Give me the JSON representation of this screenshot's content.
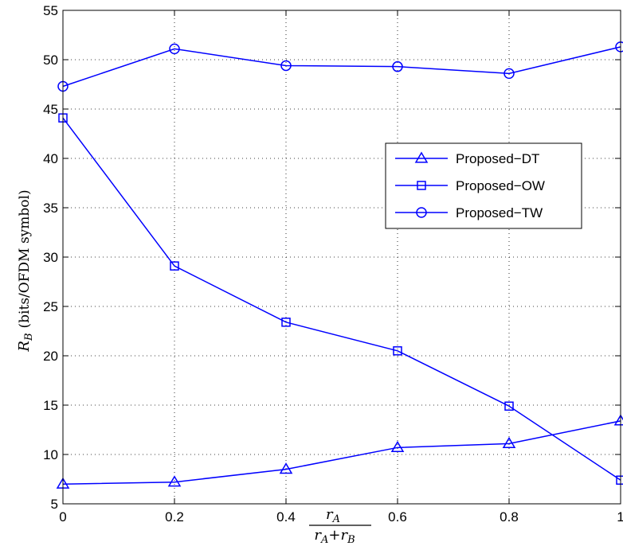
{
  "chart_data": {
    "type": "line",
    "title": "",
    "x": [
      0,
      0.2,
      0.4,
      0.6,
      0.8,
      1
    ],
    "xlim": [
      0,
      1
    ],
    "ylim": [
      5,
      55
    ],
    "xticks": [
      "0",
      "0.2",
      "0.4",
      "0.6",
      "0.8",
      "1"
    ],
    "yticks": [
      "5",
      "10",
      "15",
      "20",
      "25",
      "30",
      "35",
      "40",
      "45",
      "50",
      "55"
    ],
    "xlabel": {
      "num_main": "r",
      "num_sub": "A",
      "den_a_main": "r",
      "den_a_sub": "A",
      "plus": "+",
      "den_b_main": "r",
      "den_b_sub": "B"
    },
    "ylabel": {
      "main": "R",
      "sub": "B",
      "rest": "(bits/OFDM symbol)"
    },
    "grid": true,
    "legend_position": "right",
    "series_color": "#0000ff",
    "series": [
      {
        "name": "Proposed−DT",
        "marker": "triangle",
        "values": [
          7.0,
          7.2,
          8.5,
          10.7,
          11.1,
          13.4
        ]
      },
      {
        "name": "Proposed−OW",
        "marker": "square",
        "values": [
          44.1,
          29.1,
          23.4,
          20.5,
          14.9,
          7.4
        ]
      },
      {
        "name": "Proposed−TW",
        "marker": "circle",
        "values": [
          47.3,
          51.1,
          49.4,
          49.3,
          48.6,
          51.3
        ]
      }
    ]
  }
}
